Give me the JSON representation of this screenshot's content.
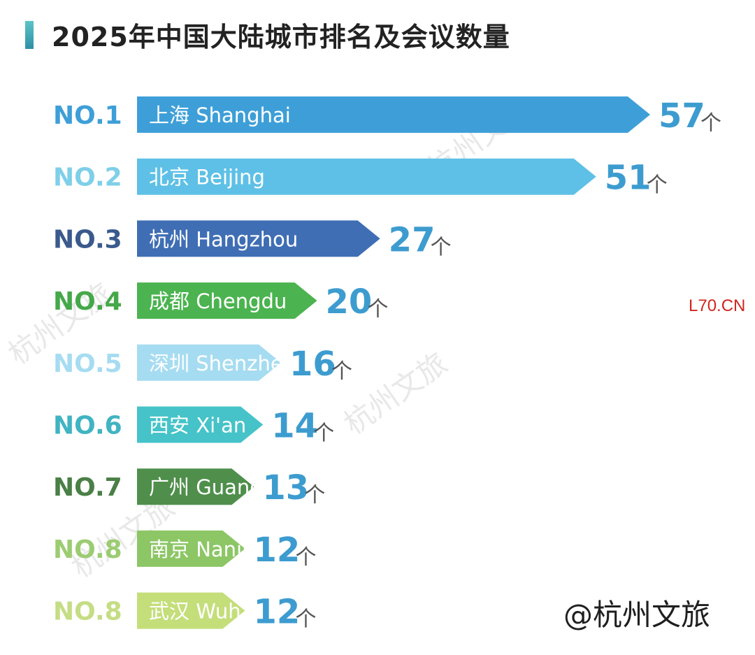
{
  "title": "2025年中国大陆城市排名及会议数量",
  "side_mark": "L70.CN",
  "credit": "@杭州文旅",
  "watermark": "杭州文旅",
  "chart_data": {
    "type": "bar",
    "orientation": "horizontal",
    "title": "2025年中国大陆城市排名及会议数量",
    "unit": "个",
    "rows": [
      {
        "rank": "NO.1",
        "city": "上海 Shanghai",
        "value": 57,
        "color": "#3e9fd8",
        "rank_color": "#3e9fd8"
      },
      {
        "rank": "NO.2",
        "city": "北京 Beijing",
        "value": 51,
        "color": "#5ec0e6",
        "rank_color": "#7fcfe8"
      },
      {
        "rank": "NO.3",
        "city": "杭州 Hangzhou",
        "value": 27,
        "color": "#3f6eb4",
        "rank_color": "#3a5a8c"
      },
      {
        "rank": "NO.4",
        "city": "成都 Chengdu",
        "value": 20,
        "color": "#4bb34f",
        "rank_color": "#45a849"
      },
      {
        "rank": "NO.5",
        "city": "深圳 Shenzhen",
        "value": 16,
        "color": "#a6dcf1",
        "rank_color": "#a6dcf1"
      },
      {
        "rank": "NO.6",
        "city": "西安 Xi'an",
        "value": 14,
        "color": "#45c3c8",
        "rank_color": "#40b4c2"
      },
      {
        "rank": "NO.7",
        "city": "广州 Guangzhou",
        "value": 13,
        "color": "#4f8f4b",
        "rank_color": "#4a7f45"
      },
      {
        "rank": "NO.8",
        "city": "南京 Nanjing",
        "value": 12,
        "color": "#8cc665",
        "rank_color": "#9ccc72"
      },
      {
        "rank": "NO.8",
        "city": "武汉 Wuhan",
        "value": 12,
        "color": "#c4de7a",
        "rank_color": "#c5dd84"
      }
    ]
  },
  "colors": {
    "value_text": "#3d9ccf",
    "unit_text": "#555555",
    "bar_label": "#ffffff"
  }
}
